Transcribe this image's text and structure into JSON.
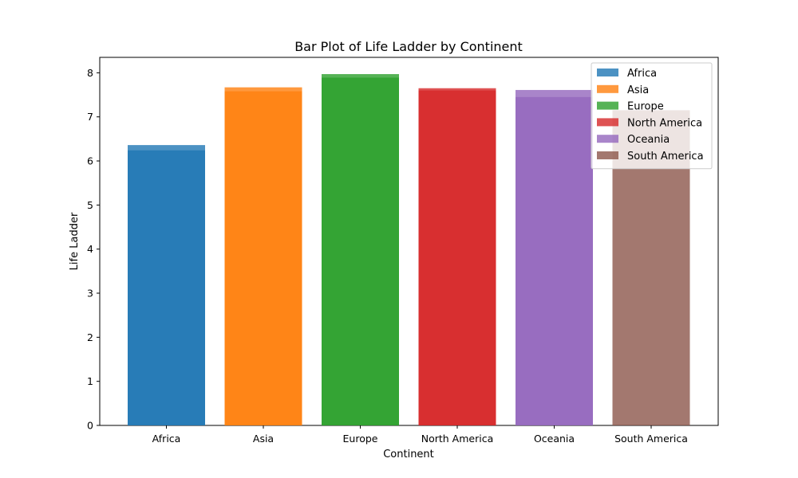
{
  "chart_data": {
    "type": "bar",
    "title": "Bar Plot of Life Ladder by Continent",
    "xlabel": "Continent",
    "ylabel": "Life Ladder",
    "categories": [
      "Africa",
      "Asia",
      "Europe",
      "North America",
      "Oceania",
      "South America"
    ],
    "series": [
      {
        "name": "Africa",
        "color": "#1f77b4",
        "stack": [
          6.36,
          6.24
        ]
      },
      {
        "name": "Asia",
        "color": "#ff7f0e",
        "stack": [
          7.67,
          7.58
        ]
      },
      {
        "name": "Europe",
        "color": "#2ca02c",
        "stack": [
          7.97,
          7.89
        ]
      },
      {
        "name": "North America",
        "color": "#d62728",
        "stack": [
          7.65,
          7.6
        ]
      },
      {
        "name": "Oceania",
        "color": "#9467bd",
        "stack": [
          7.61,
          7.45
        ]
      },
      {
        "name": "South America",
        "color": "#8c564b",
        "stack": [
          7.15
        ]
      }
    ],
    "ylim": [
      0,
      8.35
    ],
    "yticks": [
      0,
      1,
      2,
      3,
      4,
      5,
      6,
      7,
      8
    ],
    "grid": false,
    "legend_position": "top-right",
    "bar_alpha": 0.8
  }
}
